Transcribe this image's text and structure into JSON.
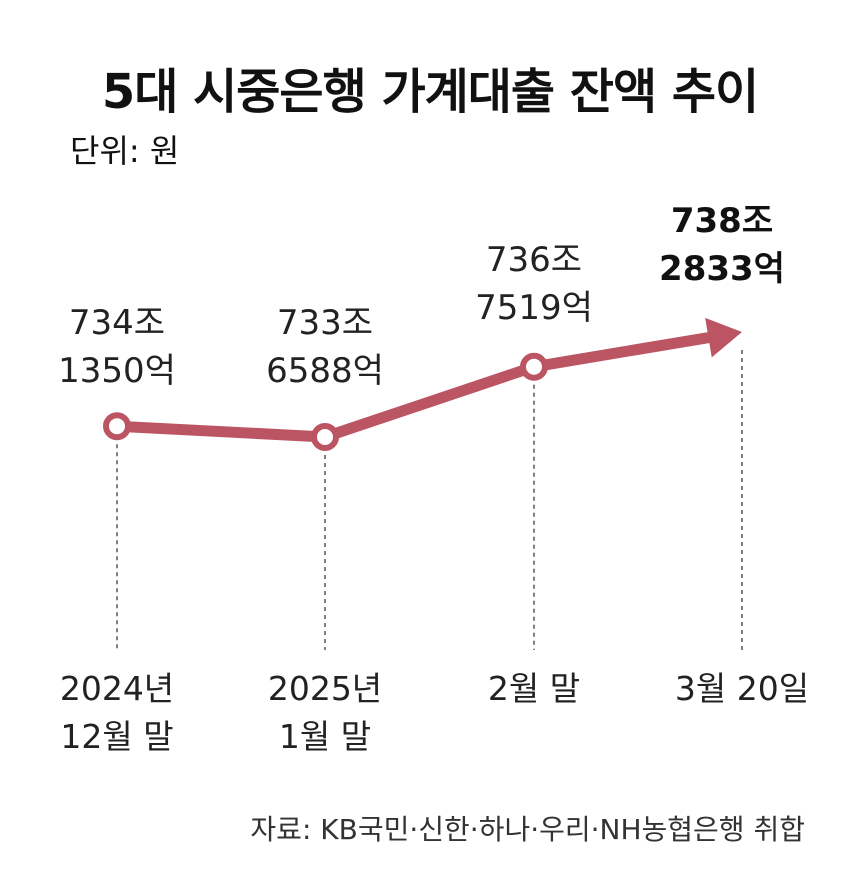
{
  "title": "5대 시중은행 가계대출 잔액 추이",
  "unit": "단위: 원",
  "source": "자료: KB국민·신한·하나·우리·NH농협은행 취합",
  "colors": {
    "line": "#bc5563",
    "marker_fill": "#ffffff",
    "guide": "#555555"
  },
  "chart_data": {
    "type": "line",
    "title": "5대 시중은행 가계대출 잔액 추이",
    "unit": "원",
    "categories": [
      [
        "2024년",
        "12월 말"
      ],
      [
        "2025년",
        "1월 말"
      ],
      [
        "2월 말"
      ],
      [
        "3월 20일"
      ]
    ],
    "values": [
      7341350,
      7336588,
      7367519,
      7382833
    ],
    "value_unit": "억원",
    "value_labels": [
      [
        "734조",
        "1350억"
      ],
      [
        "733조",
        "6588억"
      ],
      [
        "736조",
        "7519억"
      ],
      [
        "738조",
        "2833억"
      ]
    ],
    "markers": [
      true,
      true,
      true,
      false
    ],
    "last_point_arrow": true,
    "grid": false,
    "legend": "none"
  }
}
